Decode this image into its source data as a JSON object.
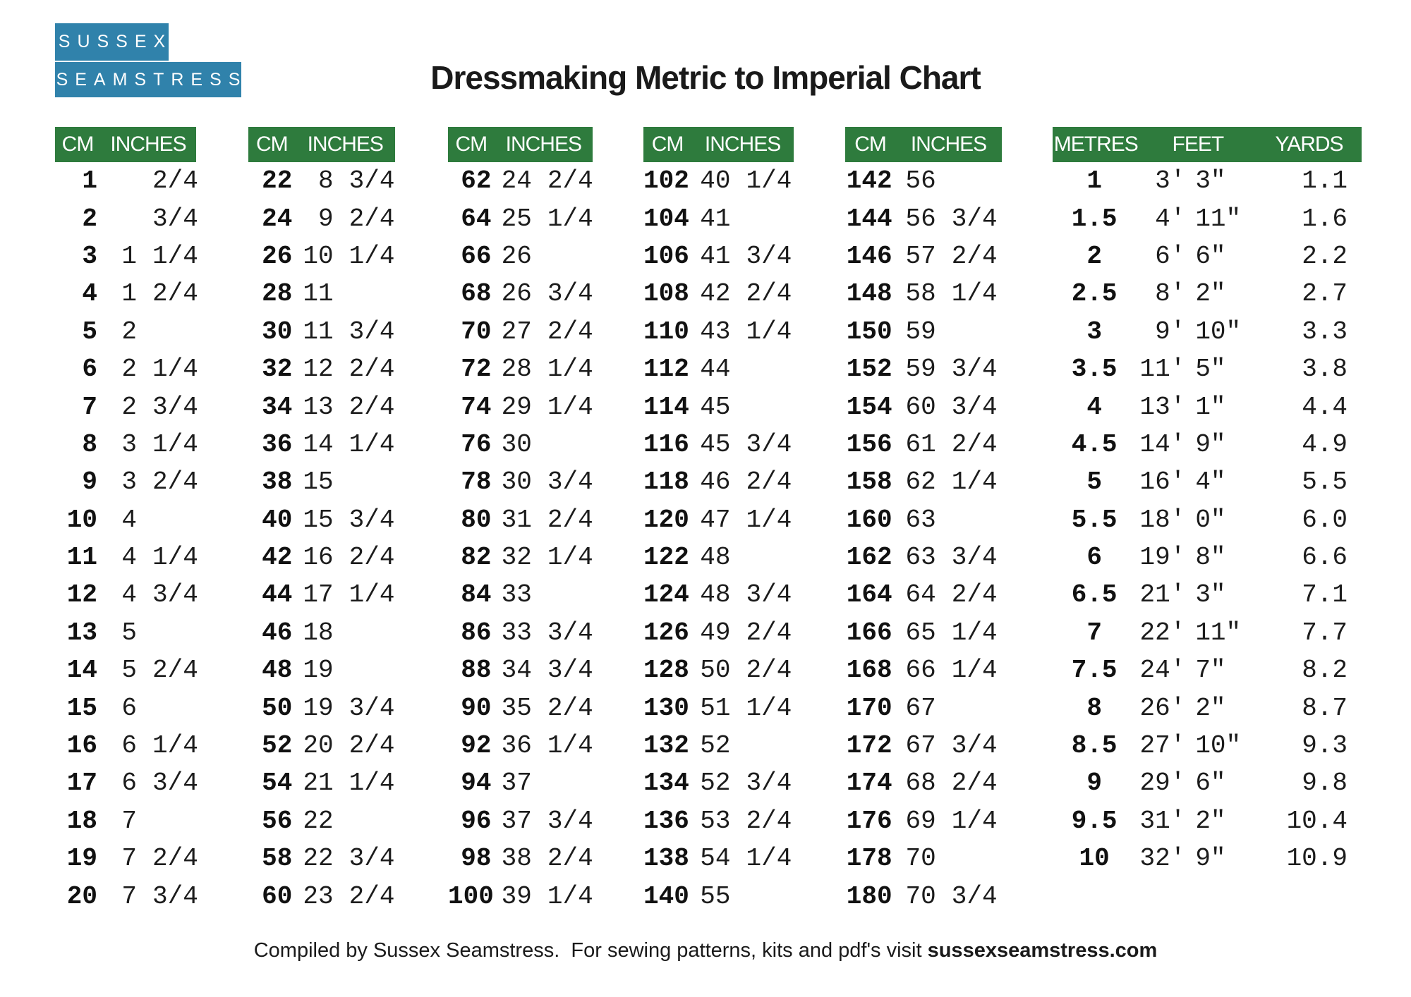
{
  "logo": {
    "line1": "SUSSEX",
    "line2": "SEAMSTRESS"
  },
  "title": "Dressmaking Metric to Imperial Chart",
  "colors": {
    "header_green": "#2e7b3d",
    "logo_blue": "#3082ab"
  },
  "cm_header": [
    "CM",
    "INCHES"
  ],
  "metres_header": [
    "METRES",
    "FEET",
    "YARDS"
  ],
  "cm_tables": [
    {
      "rows": [
        [
          "1",
          "",
          "2/4"
        ],
        [
          "2",
          "",
          "3/4"
        ],
        [
          "3",
          "1",
          "1/4"
        ],
        [
          "4",
          "1",
          "2/4"
        ],
        [
          "5",
          "2",
          ""
        ],
        [
          "6",
          "2",
          "1/4"
        ],
        [
          "7",
          "2",
          "3/4"
        ],
        [
          "8",
          "3",
          "1/4"
        ],
        [
          "9",
          "3",
          "2/4"
        ],
        [
          "10",
          "4",
          ""
        ],
        [
          "11",
          "4",
          "1/4"
        ],
        [
          "12",
          "4",
          "3/4"
        ],
        [
          "13",
          "5",
          ""
        ],
        [
          "14",
          "5",
          "2/4"
        ],
        [
          "15",
          "6",
          ""
        ],
        [
          "16",
          "6",
          "1/4"
        ],
        [
          "17",
          "6",
          "3/4"
        ],
        [
          "18",
          "7",
          ""
        ],
        [
          "19",
          "7",
          "2/4"
        ],
        [
          "20",
          "7",
          "3/4"
        ]
      ]
    },
    {
      "rows": [
        [
          "22",
          "8",
          "3/4"
        ],
        [
          "24",
          "9",
          "2/4"
        ],
        [
          "26",
          "10",
          "1/4"
        ],
        [
          "28",
          "11",
          ""
        ],
        [
          "30",
          "11",
          "3/4"
        ],
        [
          "32",
          "12",
          "2/4"
        ],
        [
          "34",
          "13",
          "2/4"
        ],
        [
          "36",
          "14",
          "1/4"
        ],
        [
          "38",
          "15",
          ""
        ],
        [
          "40",
          "15",
          "3/4"
        ],
        [
          "42",
          "16",
          "2/4"
        ],
        [
          "44",
          "17",
          "1/4"
        ],
        [
          "46",
          "18",
          ""
        ],
        [
          "48",
          "19",
          ""
        ],
        [
          "50",
          "19",
          "3/4"
        ],
        [
          "52",
          "20",
          "2/4"
        ],
        [
          "54",
          "21",
          "1/4"
        ],
        [
          "56",
          "22",
          ""
        ],
        [
          "58",
          "22",
          "3/4"
        ],
        [
          "60",
          "23",
          "2/4"
        ]
      ]
    },
    {
      "rows": [
        [
          "62",
          "24",
          "2/4"
        ],
        [
          "64",
          "25",
          "1/4"
        ],
        [
          "66",
          "26",
          ""
        ],
        [
          "68",
          "26",
          "3/4"
        ],
        [
          "70",
          "27",
          "2/4"
        ],
        [
          "72",
          "28",
          "1/4"
        ],
        [
          "74",
          "29",
          "1/4"
        ],
        [
          "76",
          "30",
          ""
        ],
        [
          "78",
          "30",
          "3/4"
        ],
        [
          "80",
          "31",
          "2/4"
        ],
        [
          "82",
          "32",
          "1/4"
        ],
        [
          "84",
          "33",
          ""
        ],
        [
          "86",
          "33",
          "3/4"
        ],
        [
          "88",
          "34",
          "3/4"
        ],
        [
          "90",
          "35",
          "2/4"
        ],
        [
          "92",
          "36",
          "1/4"
        ],
        [
          "94",
          "37",
          ""
        ],
        [
          "96",
          "37",
          "3/4"
        ],
        [
          "98",
          "38",
          "2/4"
        ],
        [
          "100",
          "39",
          "1/4"
        ]
      ]
    },
    {
      "rows": [
        [
          "102",
          "40",
          "1/4"
        ],
        [
          "104",
          "41",
          ""
        ],
        [
          "106",
          "41",
          "3/4"
        ],
        [
          "108",
          "42",
          "2/4"
        ],
        [
          "110",
          "43",
          "1/4"
        ],
        [
          "112",
          "44",
          ""
        ],
        [
          "114",
          "45",
          ""
        ],
        [
          "116",
          "45",
          "3/4"
        ],
        [
          "118",
          "46",
          "2/4"
        ],
        [
          "120",
          "47",
          "1/4"
        ],
        [
          "122",
          "48",
          ""
        ],
        [
          "124",
          "48",
          "3/4"
        ],
        [
          "126",
          "49",
          "2/4"
        ],
        [
          "128",
          "50",
          "2/4"
        ],
        [
          "130",
          "51",
          "1/4"
        ],
        [
          "132",
          "52",
          ""
        ],
        [
          "134",
          "52",
          "3/4"
        ],
        [
          "136",
          "53",
          "2/4"
        ],
        [
          "138",
          "54",
          "1/4"
        ],
        [
          "140",
          "55",
          ""
        ]
      ]
    },
    {
      "rows": [
        [
          "142",
          "56",
          ""
        ],
        [
          "144",
          "56",
          "3/4"
        ],
        [
          "146",
          "57",
          "2/4"
        ],
        [
          "148",
          "58",
          "1/4"
        ],
        [
          "150",
          "59",
          ""
        ],
        [
          "152",
          "59",
          "3/4"
        ],
        [
          "154",
          "60",
          "3/4"
        ],
        [
          "156",
          "61",
          "2/4"
        ],
        [
          "158",
          "62",
          "1/4"
        ],
        [
          "160",
          "63",
          ""
        ],
        [
          "162",
          "63",
          "3/4"
        ],
        [
          "164",
          "64",
          "2/4"
        ],
        [
          "166",
          "65",
          "1/4"
        ],
        [
          "168",
          "66",
          "1/4"
        ],
        [
          "170",
          "67",
          ""
        ],
        [
          "172",
          "67",
          "3/4"
        ],
        [
          "174",
          "68",
          "2/4"
        ],
        [
          "176",
          "69",
          "1/4"
        ],
        [
          "178",
          "70",
          ""
        ],
        [
          "180",
          "70",
          "3/4"
        ]
      ]
    }
  ],
  "metres_table": {
    "rows": [
      [
        "1",
        "3'",
        "3\"",
        "1.1"
      ],
      [
        "1.5",
        "4'",
        "11\"",
        "1.6"
      ],
      [
        "2",
        "6'",
        "6\"",
        "2.2"
      ],
      [
        "2.5",
        "8'",
        "2\"",
        "2.7"
      ],
      [
        "3",
        "9'",
        "10\"",
        "3.3"
      ],
      [
        "3.5",
        "11'",
        "5\"",
        "3.8"
      ],
      [
        "4",
        "13'",
        "1\"",
        "4.4"
      ],
      [
        "4.5",
        "14'",
        "9\"",
        "4.9"
      ],
      [
        "5",
        "16'",
        "4\"",
        "5.5"
      ],
      [
        "5.5",
        "18'",
        "0\"",
        "6.0"
      ],
      [
        "6",
        "19'",
        "8\"",
        "6.6"
      ],
      [
        "6.5",
        "21'",
        "3\"",
        "7.1"
      ],
      [
        "7",
        "22'",
        "11\"",
        "7.7"
      ],
      [
        "7.5",
        "24'",
        "7\"",
        "8.2"
      ],
      [
        "8",
        "26'",
        "2\"",
        "8.7"
      ],
      [
        "8.5",
        "27'",
        "10\"",
        "9.3"
      ],
      [
        "9",
        "29'",
        "6\"",
        "9.8"
      ],
      [
        "9.5",
        "31'",
        "2\"",
        "10.4"
      ],
      [
        "10",
        "32'",
        "9\"",
        "10.9"
      ]
    ]
  },
  "footer": {
    "text": "Compiled by Sussex Seamstress.  For sewing patterns, kits and pdf's visit ",
    "site": "sussexseamstress.com"
  }
}
